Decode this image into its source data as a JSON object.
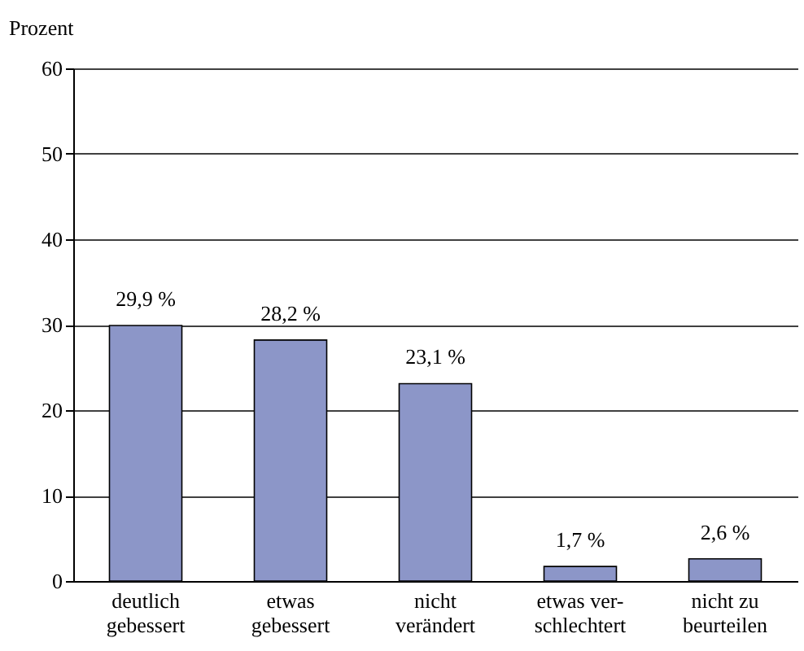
{
  "chart_data": {
    "type": "bar",
    "ylabel": "Prozent",
    "categories": [
      "deutlich\ngebessert",
      "etwas\ngebessert",
      "nicht\nverändert",
      "etwas ver-\nschlechtert",
      "nicht zu\nbeurteilen"
    ],
    "values": [
      29.9,
      28.2,
      23.1,
      1.7,
      2.6
    ],
    "value_labels": [
      "29,9 %",
      "28,2 %",
      "23,1 %",
      "1,7 %",
      "2,6 %"
    ],
    "color": "#8c96c8",
    "ylim": [
      0,
      60
    ],
    "yticks": [
      0,
      10,
      20,
      30,
      40,
      50,
      60
    ],
    "grid": "y"
  }
}
